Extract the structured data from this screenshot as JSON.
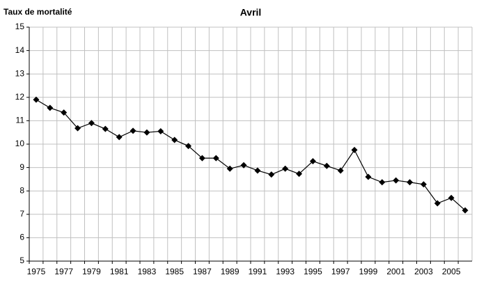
{
  "chart_data": {
    "type": "line",
    "title": "Avril",
    "y_label": "Taux de mortalité",
    "categories": [
      "1975",
      null,
      "1977",
      null,
      "1979",
      null,
      "1981",
      null,
      "1983",
      null,
      "1985",
      null,
      "1987",
      null,
      "1989",
      null,
      "1991",
      null,
      "1993",
      null,
      "1995",
      null,
      "1997",
      null,
      "1999",
      null,
      "2001",
      null,
      "2003",
      null,
      "2005",
      null
    ],
    "series": [
      {
        "color": "#000000",
        "values": [
          11.9,
          11.55,
          11.35,
          10.68,
          10.9,
          10.65,
          10.3,
          10.57,
          10.5,
          10.55,
          10.18,
          9.92,
          9.4,
          9.4,
          8.95,
          9.1,
          8.87,
          8.7,
          8.95,
          8.73,
          9.27,
          9.07,
          8.87,
          9.75,
          8.6,
          8.37,
          8.45,
          8.37,
          8.28,
          7.47,
          7.7,
          7.17
        ]
      }
    ],
    "ylim": [
      5,
      15
    ],
    "yticks": [
      5,
      6,
      7,
      8,
      9,
      10,
      11,
      12,
      13,
      14,
      15
    ],
    "grid": true
  }
}
